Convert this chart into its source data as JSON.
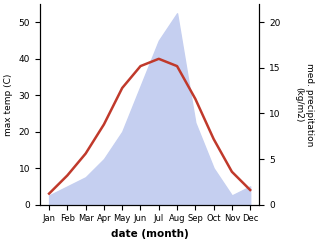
{
  "months": [
    "Jan",
    "Feb",
    "Mar",
    "Apr",
    "May",
    "Jun",
    "Jul",
    "Aug",
    "Sep",
    "Oct",
    "Nov",
    "Dec"
  ],
  "temperature": [
    3,
    8,
    14,
    22,
    32,
    38,
    40,
    38,
    29,
    18,
    9,
    4
  ],
  "precipitation": [
    1,
    2,
    3,
    5,
    8,
    13,
    18,
    21,
    9,
    4,
    1,
    2
  ],
  "temp_color": "#c0392b",
  "precip_fill_color": "#c5cff0",
  "temp_ylim": [
    0,
    55
  ],
  "precip_ylim": [
    0,
    22
  ],
  "temp_yticks": [
    0,
    10,
    20,
    30,
    40,
    50
  ],
  "precip_yticks": [
    0,
    5,
    10,
    15,
    20
  ],
  "xlabel": "date (month)",
  "ylabel_left": "max temp (C)",
  "ylabel_right": "med. precipitation\n(kg/m2)",
  "background_color": "#ffffff",
  "figsize": [
    3.18,
    2.43
  ],
  "dpi": 100
}
